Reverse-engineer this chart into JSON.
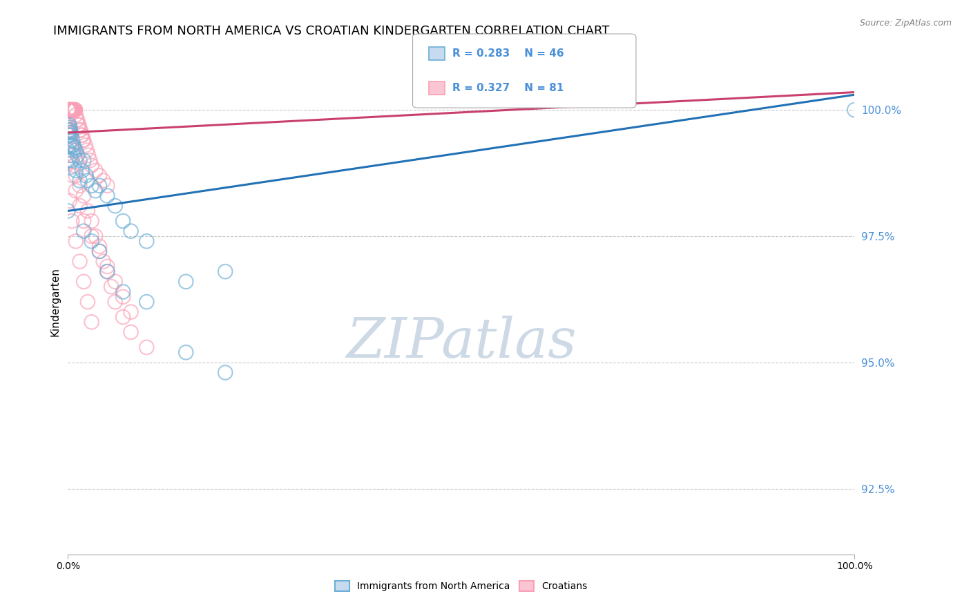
{
  "title": "IMMIGRANTS FROM NORTH AMERICA VS CROATIAN KINDERGARTEN CORRELATION CHART",
  "source": "Source: ZipAtlas.com",
  "ylabel": "Kindergarten",
  "xlim": [
    0,
    100
  ],
  "ylim": [
    91.2,
    101.2
  ],
  "yticks": [
    92.5,
    95.0,
    97.5,
    100.0
  ],
  "xticks": [
    0,
    100
  ],
  "xtick_labels": [
    "0.0%",
    "100.0%"
  ],
  "ytick_labels": [
    "92.5%",
    "95.0%",
    "97.5%",
    "100.0%"
  ],
  "blue_R": 0.283,
  "blue_N": 46,
  "pink_R": 0.327,
  "pink_N": 81,
  "legend_label_blue": "Immigrants from North America",
  "legend_label_pink": "Croatians",
  "watermark": "ZIPatlas",
  "blue_color": "#6baed6",
  "pink_color": "#fa9fb5",
  "blue_line_color": "#2171b5",
  "pink_line_color": "#c94070",
  "blue_line": [
    0,
    100,
    98.0,
    100.3
  ],
  "pink_line": [
    0,
    100,
    99.55,
    100.35
  ],
  "grid_color": "#c8c8c8",
  "background_color": "#ffffff",
  "title_fontsize": 13,
  "axis_fontsize": 10,
  "legend_fontsize": 11,
  "watermark_color": "#cdd9e5",
  "legend_text_color": "#4a90d9",
  "blue_scatter": [
    [
      0.0,
      99.2
    ],
    [
      0.05,
      99.5
    ],
    [
      0.1,
      99.6
    ],
    [
      0.15,
      99.55
    ],
    [
      0.2,
      99.7
    ],
    [
      0.25,
      99.65
    ],
    [
      0.3,
      99.6
    ],
    [
      0.35,
      99.55
    ],
    [
      0.4,
      99.5
    ],
    [
      0.5,
      99.3
    ],
    [
      0.6,
      99.4
    ],
    [
      0.7,
      99.3
    ],
    [
      0.8,
      99.25
    ],
    [
      1.0,
      99.2
    ],
    [
      1.2,
      99.1
    ],
    [
      1.5,
      99.0
    ],
    [
      1.8,
      98.8
    ],
    [
      2.0,
      99.0
    ],
    [
      2.3,
      98.7
    ],
    [
      2.5,
      98.6
    ],
    [
      3.0,
      98.5
    ],
    [
      3.5,
      98.4
    ],
    [
      4.0,
      98.5
    ],
    [
      5.0,
      98.3
    ],
    [
      6.0,
      98.1
    ],
    [
      7.0,
      97.8
    ],
    [
      8.0,
      97.6
    ],
    [
      10.0,
      97.4
    ],
    [
      15.0,
      96.6
    ],
    [
      20.0,
      96.8
    ],
    [
      0.0,
      99.0
    ],
    [
      0.1,
      99.3
    ],
    [
      0.3,
      99.1
    ],
    [
      0.5,
      99.0
    ],
    [
      1.0,
      98.8
    ],
    [
      1.5,
      98.6
    ],
    [
      2.0,
      97.6
    ],
    [
      3.0,
      97.4
    ],
    [
      4.0,
      97.2
    ],
    [
      5.0,
      96.8
    ],
    [
      7.0,
      96.4
    ],
    [
      10.0,
      96.2
    ],
    [
      15.0,
      95.2
    ],
    [
      20.0,
      94.8
    ],
    [
      100.0,
      100.0
    ],
    [
      0.0,
      98.0
    ]
  ],
  "pink_scatter": [
    [
      0.0,
      100.0
    ],
    [
      0.05,
      100.0
    ],
    [
      0.1,
      100.0
    ],
    [
      0.15,
      100.0
    ],
    [
      0.2,
      100.0
    ],
    [
      0.25,
      100.0
    ],
    [
      0.3,
      100.0
    ],
    [
      0.35,
      100.0
    ],
    [
      0.4,
      100.0
    ],
    [
      0.45,
      100.0
    ],
    [
      0.5,
      100.0
    ],
    [
      0.55,
      100.0
    ],
    [
      0.6,
      100.0
    ],
    [
      0.65,
      100.0
    ],
    [
      0.7,
      100.0
    ],
    [
      0.75,
      100.0
    ],
    [
      0.8,
      100.0
    ],
    [
      0.85,
      100.0
    ],
    [
      0.9,
      100.0
    ],
    [
      0.95,
      100.0
    ],
    [
      1.0,
      99.9
    ],
    [
      1.1,
      99.8
    ],
    [
      1.2,
      99.8
    ],
    [
      1.3,
      99.7
    ],
    [
      1.4,
      99.7
    ],
    [
      1.5,
      99.6
    ],
    [
      1.6,
      99.6
    ],
    [
      1.7,
      99.5
    ],
    [
      1.8,
      99.5
    ],
    [
      1.9,
      99.4
    ],
    [
      2.0,
      99.4
    ],
    [
      2.2,
      99.3
    ],
    [
      2.4,
      99.2
    ],
    [
      2.6,
      99.1
    ],
    [
      2.8,
      99.0
    ],
    [
      3.0,
      98.9
    ],
    [
      3.5,
      98.8
    ],
    [
      4.0,
      98.7
    ],
    [
      4.5,
      98.6
    ],
    [
      5.0,
      98.5
    ],
    [
      0.0,
      99.8
    ],
    [
      0.1,
      99.7
    ],
    [
      0.2,
      99.6
    ],
    [
      0.3,
      99.5
    ],
    [
      0.4,
      99.4
    ],
    [
      0.5,
      99.3
    ],
    [
      0.6,
      99.2
    ],
    [
      0.7,
      99.1
    ],
    [
      0.8,
      98.9
    ],
    [
      1.0,
      98.7
    ],
    [
      1.5,
      98.5
    ],
    [
      2.0,
      98.3
    ],
    [
      2.5,
      98.0
    ],
    [
      3.0,
      97.8
    ],
    [
      3.5,
      97.5
    ],
    [
      4.0,
      97.3
    ],
    [
      4.5,
      97.0
    ],
    [
      5.0,
      96.8
    ],
    [
      5.5,
      96.5
    ],
    [
      6.0,
      96.2
    ],
    [
      7.0,
      95.9
    ],
    [
      8.0,
      95.6
    ],
    [
      10.0,
      95.3
    ],
    [
      0.2,
      98.2
    ],
    [
      0.5,
      97.8
    ],
    [
      1.0,
      97.4
    ],
    [
      1.5,
      97.0
    ],
    [
      2.0,
      96.6
    ],
    [
      2.5,
      96.2
    ],
    [
      3.0,
      95.8
    ],
    [
      0.3,
      99.0
    ],
    [
      0.6,
      98.7
    ],
    [
      1.0,
      98.4
    ],
    [
      1.5,
      98.1
    ],
    [
      2.0,
      97.8
    ],
    [
      3.0,
      97.5
    ],
    [
      4.0,
      97.2
    ],
    [
      5.0,
      96.9
    ],
    [
      6.0,
      96.6
    ],
    [
      7.0,
      96.3
    ],
    [
      8.0,
      96.0
    ]
  ]
}
